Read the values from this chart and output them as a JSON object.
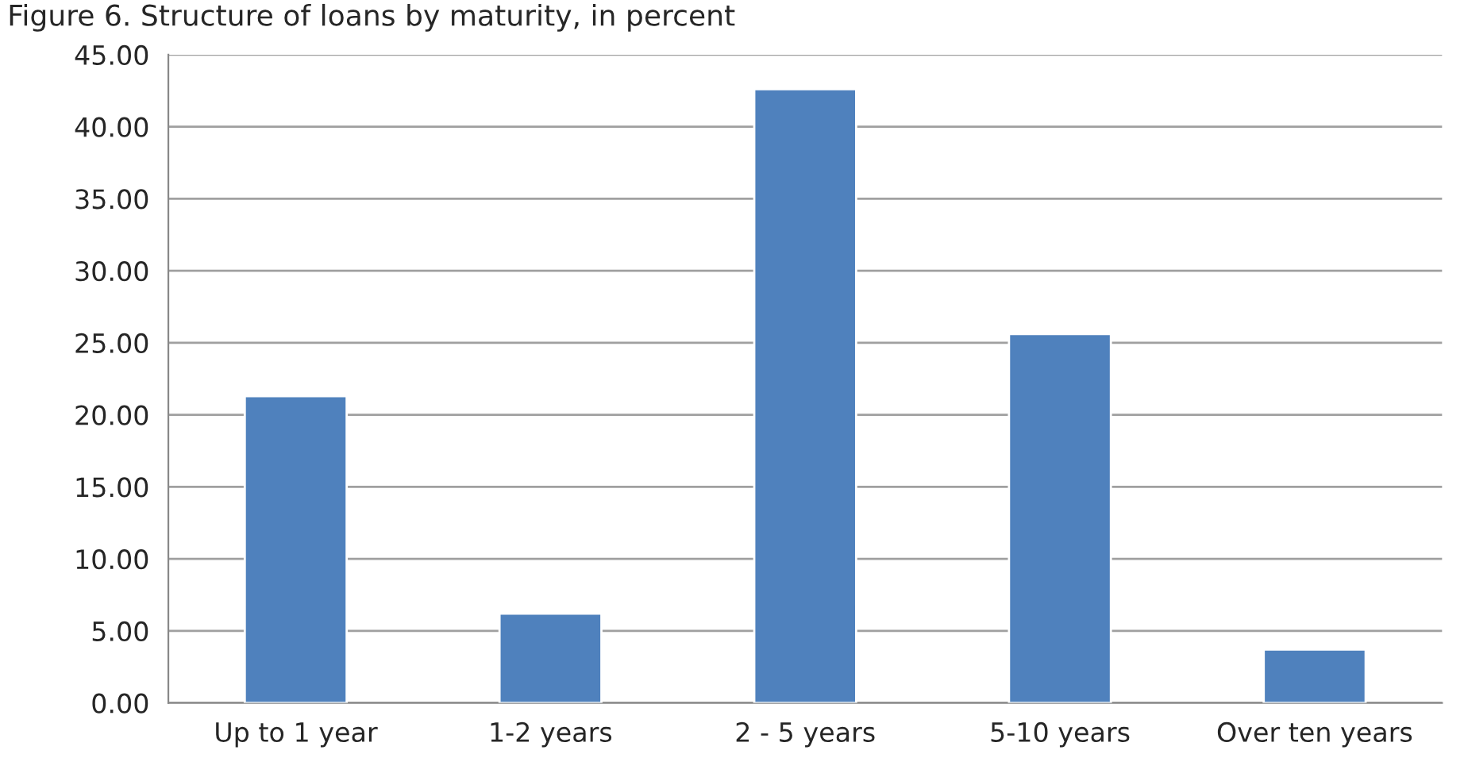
{
  "chart_data": {
    "type": "bar",
    "title": "Figure 6. Structure of loans by maturity, in percent",
    "categories": [
      "Up to 1 year",
      "1-2 years",
      "2 - 5 years",
      "5-10 years",
      "Over ten years"
    ],
    "values": [
      21.3,
      6.2,
      42.6,
      25.6,
      3.7
    ],
    "color": "#4f81bd",
    "ylim": [
      0,
      45
    ],
    "yticks": [
      {
        "value": 0,
        "label": "0.00"
      },
      {
        "value": 5,
        "label": "5.00"
      },
      {
        "value": 10,
        "label": "10.00"
      },
      {
        "value": 15,
        "label": "15.00"
      },
      {
        "value": 20,
        "label": "20.00"
      },
      {
        "value": 25,
        "label": "25.00"
      },
      {
        "value": 30,
        "label": "30.00"
      },
      {
        "value": 35,
        "label": "35.00"
      },
      {
        "value": 40,
        "label": "40.00"
      },
      {
        "value": 45,
        "label": "45.00"
      }
    ],
    "grid": "y"
  }
}
